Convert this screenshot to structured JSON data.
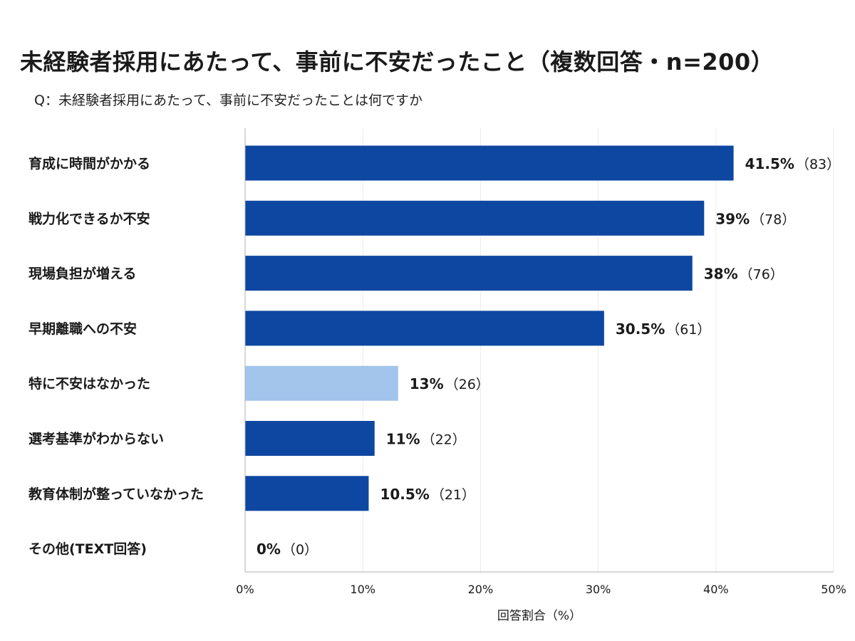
{
  "title": "未経験者採用にあたって、事前に不安だったこと（複数回答・n=200）",
  "subtitle": "Q：未経験者採用にあたって、事前に不安だったことは何ですか",
  "chart_data": {
    "type": "bar",
    "orientation": "horizontal",
    "categories": [
      "育成に時間がかかる",
      "戦力化できるか不安",
      "現場負担が増える",
      "早期離職への不安",
      "特に不安はなかった",
      "選考基準がわからない",
      "教育体制が整っていなかった",
      "その他(TEXT回答)"
    ],
    "values": [
      41.5,
      39,
      38,
      30.5,
      13,
      11,
      10.5,
      0
    ],
    "value_labels": [
      "41.5%",
      "39%",
      "38%",
      "30.5%",
      "13%",
      "11%",
      "10.5%",
      "0%"
    ],
    "counts": [
      "（83）",
      "（78）",
      "（76）",
      "（61）",
      "（26）",
      "（22）",
      "（21）",
      "（0）"
    ],
    "xlabel": "回答割合（%）",
    "xlim": [
      0,
      50
    ],
    "x_ticks": [
      "0%",
      "10%",
      "20%",
      "30%",
      "40%",
      "50%"
    ],
    "grid": true,
    "colors": {
      "default": "#0d47a1",
      "highlight": "#a3c4eb"
    },
    "highlight_index": 4
  }
}
